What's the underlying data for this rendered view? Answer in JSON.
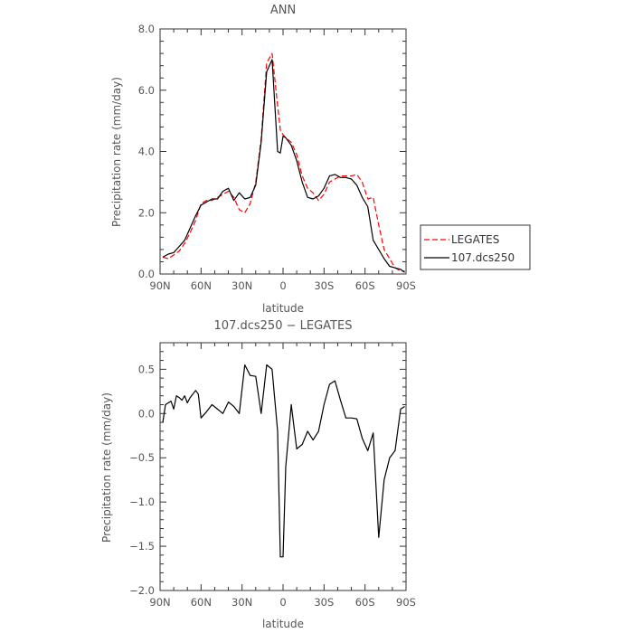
{
  "chart_data": [
    {
      "type": "line",
      "title": "ANN",
      "xlabel": "latitude",
      "ylabel": "Precipitation rate (mm/day)",
      "xlim": [
        90,
        -90
      ],
      "ylim": [
        0,
        8
      ],
      "x_tick_values": [
        90,
        60,
        30,
        0,
        -30,
        -60,
        -90
      ],
      "x_tick_labels": [
        "90N",
        "60N",
        "30N",
        "0",
        "30S",
        "60S",
        "90S"
      ],
      "y_tick_values": [
        0,
        2,
        4,
        6,
        8
      ],
      "y_tick_labels": [
        "0.0",
        "2.0",
        "4.0",
        "6.0",
        "8.0"
      ],
      "legend": {
        "position": "right-outside"
      },
      "series": [
        {
          "name": "LEGATES",
          "color": "#ff0000",
          "style": "dashed",
          "x": [
            88,
            84,
            80,
            76,
            72,
            68,
            64,
            60,
            56,
            52,
            48,
            44,
            40,
            36,
            32,
            28,
            24,
            20,
            16,
            12,
            8,
            4,
            2,
            0,
            -2,
            -6,
            -10,
            -14,
            -18,
            -22,
            -26,
            -30,
            -34,
            -38,
            -42,
            -46,
            -50,
            -54,
            -58,
            -62,
            -66,
            -70,
            -74,
            -78,
            -82,
            -86,
            -89
          ],
          "y": [
            0.55,
            0.5,
            0.62,
            0.75,
            1.0,
            1.35,
            1.75,
            2.3,
            2.4,
            2.4,
            2.5,
            2.6,
            2.7,
            2.5,
            2.1,
            2.0,
            2.3,
            3.0,
            4.4,
            6.9,
            7.2,
            5.5,
            4.7,
            4.55,
            4.45,
            4.3,
            3.9,
            3.2,
            2.8,
            2.65,
            2.4,
            2.6,
            3.0,
            3.1,
            3.2,
            3.2,
            3.2,
            3.25,
            3.0,
            2.45,
            2.5,
            1.6,
            0.8,
            0.5,
            0.2,
            0.1,
            0.1
          ]
        },
        {
          "name": "107.dcs250",
          "color": "#000000",
          "style": "solid",
          "x": [
            88,
            84,
            80,
            76,
            72,
            68,
            64,
            60,
            56,
            52,
            48,
            44,
            40,
            36,
            32,
            28,
            24,
            20,
            16,
            12,
            8,
            4,
            2,
            0,
            -2,
            -6,
            -10,
            -14,
            -18,
            -22,
            -26,
            -30,
            -34,
            -38,
            -42,
            -46,
            -50,
            -54,
            -58,
            -62,
            -66,
            -70,
            -74,
            -78,
            -82,
            -86,
            -89
          ],
          "y": [
            0.55,
            0.65,
            0.7,
            0.9,
            1.1,
            1.5,
            1.9,
            2.25,
            2.35,
            2.45,
            2.45,
            2.7,
            2.8,
            2.4,
            2.65,
            2.45,
            2.5,
            2.9,
            4.3,
            6.6,
            7.0,
            4.0,
            3.95,
            4.5,
            4.45,
            4.2,
            3.7,
            3.0,
            2.5,
            2.45,
            2.55,
            2.8,
            3.2,
            3.25,
            3.15,
            3.15,
            3.1,
            2.9,
            2.5,
            2.2,
            1.1,
            0.8,
            0.5,
            0.25,
            0.2,
            0.15,
            0.05
          ]
        }
      ]
    },
    {
      "type": "line",
      "title": "107.dcs250 − LEGATES",
      "xlabel": "latitude",
      "ylabel": "Precipitation rate (mm/day)",
      "xlim": [
        90,
        -90
      ],
      "ylim": [
        -2,
        0.8
      ],
      "x_tick_values": [
        90,
        60,
        30,
        0,
        -30,
        -60,
        -90
      ],
      "x_tick_labels": [
        "90N",
        "60N",
        "30N",
        "0",
        "30S",
        "60S",
        "90S"
      ],
      "y_tick_values": [
        0.5,
        0.0,
        -0.5,
        -1.0,
        -1.5,
        -2.0
      ],
      "y_tick_labels": [
        "0.5",
        "0.0",
        "−0.5",
        "−1.0",
        "−1.5",
        "−2.0"
      ],
      "series": [
        {
          "color": "#000000",
          "style": "solid",
          "x": [
            88,
            86,
            84,
            82,
            80,
            78,
            76,
            74,
            72,
            70,
            68,
            66,
            64,
            62,
            60,
            56,
            52,
            48,
            44,
            40,
            36,
            32,
            28,
            24,
            20,
            16,
            12,
            8,
            4,
            2,
            0,
            -2,
            -6,
            -10,
            -14,
            -18,
            -22,
            -26,
            -30,
            -34,
            -38,
            -42,
            -46,
            -50,
            -54,
            -58,
            -62,
            -66,
            -70,
            -74,
            -78,
            -82,
            -86,
            -89
          ],
          "y": [
            -0.1,
            0.1,
            0.12,
            0.14,
            0.05,
            0.2,
            0.18,
            0.15,
            0.2,
            0.12,
            0.18,
            0.22,
            0.26,
            0.22,
            -0.05,
            0.02,
            0.1,
            0.05,
            0.0,
            0.13,
            0.08,
            0.0,
            0.55,
            0.43,
            0.42,
            0.0,
            0.55,
            0.5,
            -0.2,
            -1.62,
            -1.62,
            -0.6,
            0.1,
            -0.4,
            -0.35,
            -0.2,
            -0.3,
            -0.2,
            0.1,
            0.33,
            0.37,
            0.15,
            -0.05,
            -0.05,
            -0.06,
            -0.28,
            -0.42,
            -0.22,
            -1.4,
            -0.75,
            -0.5,
            -0.42,
            0.05,
            0.08
          ]
        }
      ]
    }
  ]
}
